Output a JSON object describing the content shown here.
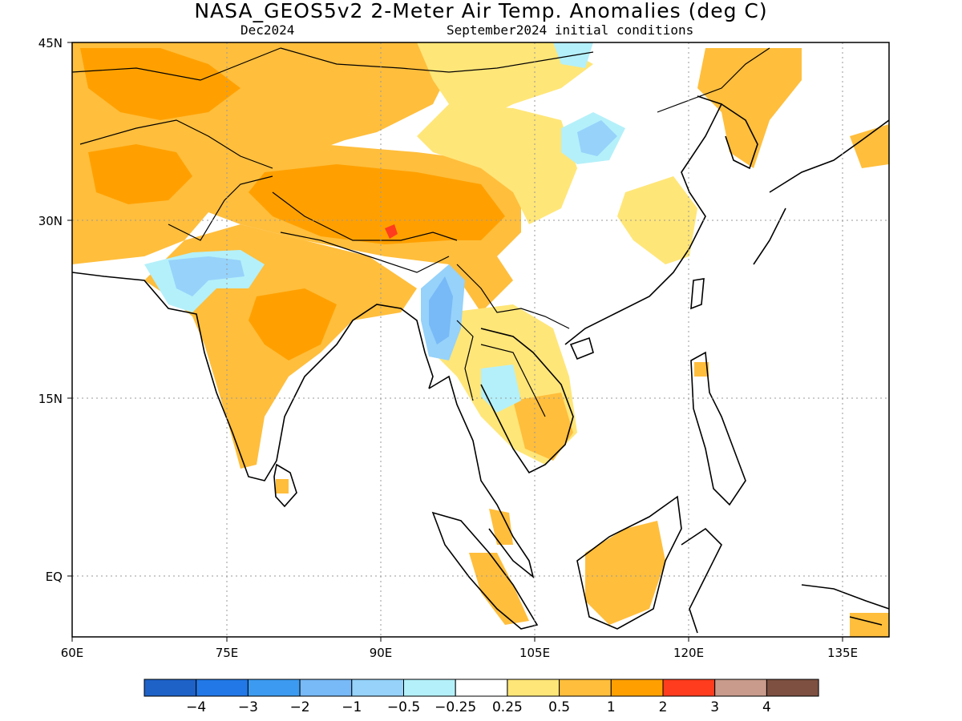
{
  "title": "NASA_GEOS5v2 2-Meter Air Temp. Anomalies (deg C)",
  "subtitle_left": "Dec2024",
  "subtitle_right": "September2024 initial conditions",
  "map": {
    "lon_range": [
      60,
      140
    ],
    "lat_range": [
      -6,
      45
    ],
    "lon_ticks": [
      "60E",
      "75E",
      "90E",
      "105E",
      "120E",
      "135E"
    ],
    "lat_ticks": [
      "45N",
      "30N",
      "15N",
      "EQ"
    ]
  },
  "colorbar": {
    "colors": [
      "#1e62c8",
      "#2278e6",
      "#3c9bf0",
      "#78b9f7",
      "#96d2fa",
      "#b4f0fa",
      "#ffffff",
      "#ffe678",
      "#ffbe3c",
      "#ffa000",
      "#ff3c1e",
      "#c89b8c",
      "#7d5041"
    ],
    "labels": [
      "-4",
      "-3",
      "-2",
      "-1",
      "-0.5",
      "-0.25",
      "0.25",
      "0.5",
      "1",
      "2",
      "3",
      "4"
    ]
  },
  "colors": {
    "warm_light": "#ffe678",
    "warm": "#ffbe3c",
    "warm_strong": "#ffa000",
    "hot": "#ff3c1e",
    "cool_light": "#b4f0fa",
    "cool": "#96d2fa",
    "cool_strong": "#78b9f7"
  }
}
